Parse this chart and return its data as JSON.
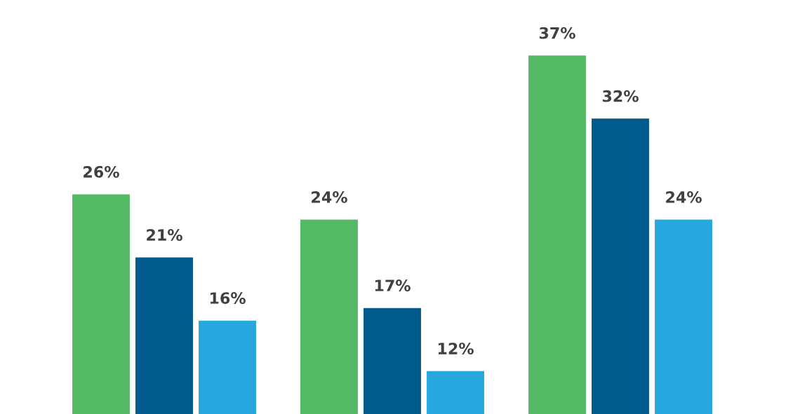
{
  "chart_data": {
    "type": "bar",
    "categories": [
      null,
      null,
      null
    ],
    "series": [
      {
        "color": "#53b964",
        "values": [
          26,
          24,
          37
        ],
        "value_labels": [
          "26%",
          "24%",
          "37%"
        ]
      },
      {
        "color": "#005a8c",
        "values": [
          21,
          17,
          32
        ],
        "value_labels": [
          "21%",
          "17%",
          "32%"
        ]
      },
      {
        "color": "#27a7df",
        "values": [
          16,
          12,
          24
        ],
        "value_labels": [
          "16%",
          "12%",
          "24%"
        ]
      }
    ],
    "ylim": [
      8.6,
      41.4
    ],
    "grid": false,
    "legend": false
  }
}
